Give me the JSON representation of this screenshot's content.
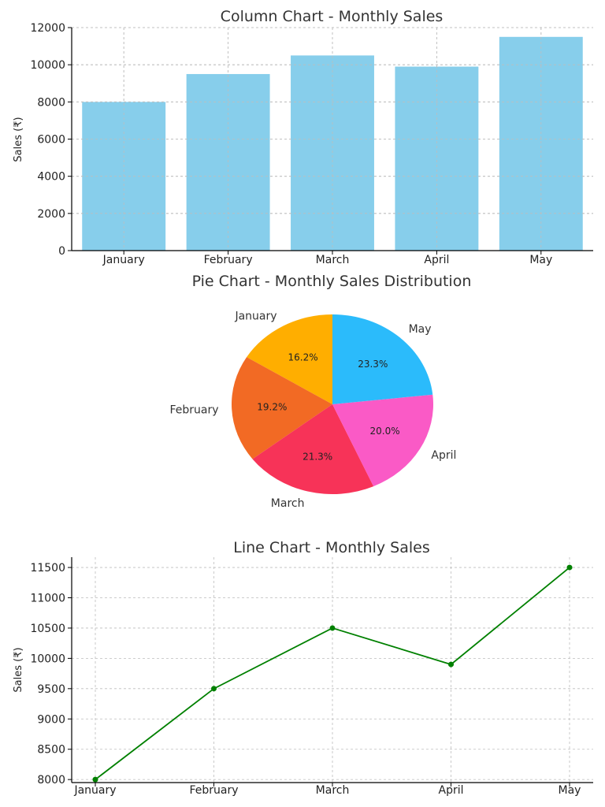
{
  "chart_data": [
    {
      "type": "bar",
      "title": "Column Chart - Monthly Sales",
      "xlabel": "",
      "ylabel": "Sales (₹)",
      "categories": [
        "January",
        "February",
        "March",
        "April",
        "May"
      ],
      "values": [
        8000,
        9500,
        10500,
        9900,
        11500
      ],
      "ylim": [
        0,
        12000
      ],
      "yticks": [
        0,
        2000,
        4000,
        6000,
        8000,
        10000,
        12000
      ],
      "grid": true,
      "color": "#87CEEB"
    },
    {
      "type": "pie",
      "title": "Pie Chart - Monthly Sales Distribution",
      "labels": [
        "January",
        "February",
        "March",
        "April",
        "May"
      ],
      "values": [
        8000,
        9500,
        10500,
        9900,
        11500
      ],
      "percent_labels": [
        "16.2%",
        "19.2%",
        "21.3%",
        "20.0%",
        "23.3%"
      ],
      "colors": [
        "#FFAE00",
        "#F26A24",
        "#F73358",
        "#FA5AC6",
        "#2BBBFB"
      ]
    },
    {
      "type": "line",
      "title": "Line Chart - Monthly Sales",
      "xlabel": "",
      "ylabel": "Sales (₹)",
      "categories": [
        "January",
        "February",
        "March",
        "April",
        "May"
      ],
      "values": [
        8000,
        9500,
        10500,
        9900,
        11500
      ],
      "ylim": [
        7950,
        11670
      ],
      "yticks": [
        8000,
        8500,
        9000,
        9500,
        10000,
        10500,
        11000,
        11500
      ],
      "grid": true,
      "color": "#008000"
    }
  ]
}
